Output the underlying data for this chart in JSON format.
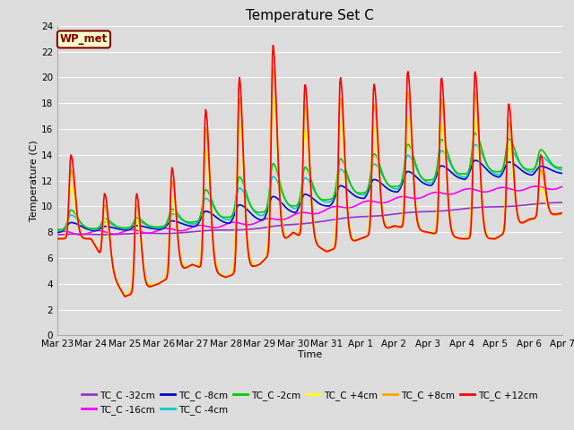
{
  "title": "Temperature Set C",
  "xlabel": "Time",
  "ylabel": "Temperature (C)",
  "ylim": [
    0,
    24
  ],
  "yticks": [
    0,
    2,
    4,
    6,
    8,
    10,
    12,
    14,
    16,
    18,
    20,
    22,
    24
  ],
  "xtick_labels": [
    "Mar 23",
    "Mar 24",
    "Mar 25",
    "Mar 26",
    "Mar 27",
    "Mar 28",
    "Mar 29",
    "Mar 30",
    "Mar 31",
    "Apr 1",
    "Apr 2",
    "Apr 3",
    "Apr 4",
    "Apr 5",
    "Apr 6",
    "Apr 7"
  ],
  "background_color": "#dcdcdc",
  "plot_bg_color": "#dcdcdc",
  "grid_color": "#ffffff",
  "legend_box_label": "WP_met",
  "legend_box_bg": "#ffffcc",
  "legend_box_border": "#800000",
  "series": [
    {
      "label": "TC_C -32cm",
      "color": "#9932CC"
    },
    {
      "label": "TC_C -16cm",
      "color": "#FF00FF"
    },
    {
      "label": "TC_C -8cm",
      "color": "#0000CD"
    },
    {
      "label": "TC_C -4cm",
      "color": "#00CCCC"
    },
    {
      "label": "TC_C -2cm",
      "color": "#00CC00"
    },
    {
      "label": "TC_C +4cm",
      "color": "#FFFF00"
    },
    {
      "label": "TC_C +8cm",
      "color": "#FFA500"
    },
    {
      "label": "TC_C +12cm",
      "color": "#FF0000"
    }
  ],
  "title_fontsize": 11,
  "axis_fontsize": 8,
  "tick_fontsize": 7.5
}
